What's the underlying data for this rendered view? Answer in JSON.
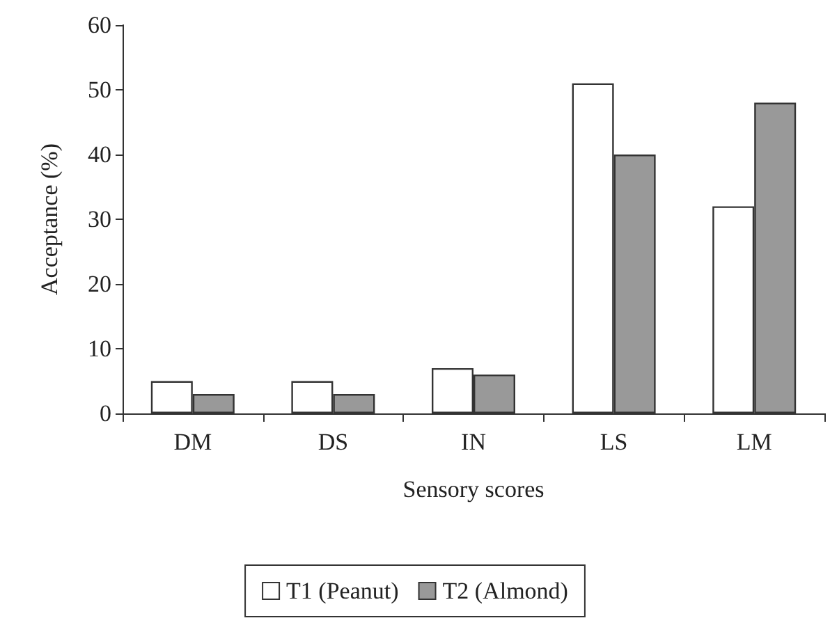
{
  "chart_data": {
    "type": "bar",
    "xlabel": "Sensory scores",
    "ylabel": "Acceptance (%)",
    "categories": [
      "DM",
      "DS",
      "IN",
      "LS",
      "LM"
    ],
    "series": [
      {
        "name": "T1 (Peanut)",
        "color": "#ffffff",
        "values": [
          5,
          5,
          7,
          51,
          32
        ]
      },
      {
        "name": "T2 (Almond)",
        "color": "#999999",
        "values": [
          3,
          3,
          6,
          40,
          48
        ]
      }
    ],
    "ylim": [
      0,
      60
    ],
    "yticks": [
      0,
      10,
      20,
      30,
      40,
      50,
      60
    ],
    "grid": false,
    "legend": "bottom"
  }
}
